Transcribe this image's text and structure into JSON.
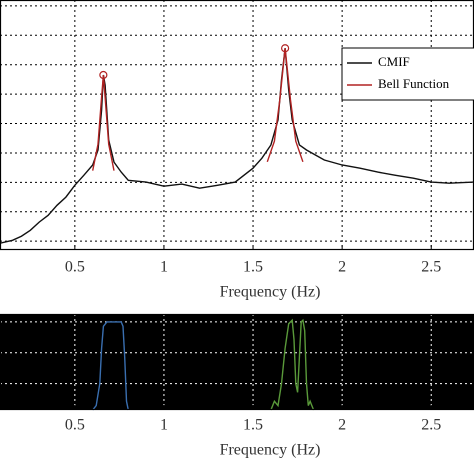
{
  "chart_data": [
    {
      "type": "line",
      "x_label": "Frequency (Hz)",
      "xlim": [
        0.08,
        2.74
      ],
      "xticks": [
        0.5,
        1,
        1.5,
        2,
        2.5
      ],
      "ylim": [
        -0.3,
        8.2
      ],
      "yticks": [
        0,
        1,
        2,
        3,
        4,
        5,
        6,
        7,
        8
      ],
      "grid": true,
      "grid_color": "#000",
      "background": "#fff",
      "legend": "upper right",
      "series": [
        {
          "name": "CMIF",
          "color": "#111",
          "x": [
            0.08,
            0.15,
            0.2,
            0.25,
            0.3,
            0.35,
            0.4,
            0.45,
            0.5,
            0.55,
            0.6,
            0.63,
            0.65,
            0.66,
            0.67,
            0.69,
            0.72,
            0.76,
            0.8,
            0.9,
            1.0,
            1.1,
            1.2,
            1.3,
            1.4,
            1.5,
            1.55,
            1.6,
            1.64,
            1.66,
            1.68,
            1.7,
            1.72,
            1.76,
            1.8,
            1.9,
            2.0,
            2.1,
            2.2,
            2.3,
            2.4,
            2.5,
            2.6,
            2.74
          ],
          "values": [
            -0.07,
            0.03,
            0.17,
            0.37,
            0.65,
            0.88,
            1.22,
            1.5,
            1.9,
            2.24,
            2.59,
            3.1,
            4.46,
            5.65,
            5.31,
            3.44,
            2.69,
            2.35,
            2.07,
            2.01,
            1.87,
            1.94,
            1.8,
            1.9,
            2.01,
            2.48,
            2.82,
            3.27,
            4.12,
            5.48,
            6.56,
            5.14,
            4.12,
            3.27,
            3.1,
            2.76,
            2.59,
            2.48,
            2.35,
            2.24,
            2.14,
            2.01,
            1.97,
            2.01
          ]
        },
        {
          "name": "Bell Function",
          "color": "#b22222",
          "x": [
            0.6,
            0.63,
            0.65,
            0.66,
            0.67,
            0.69,
            0.72,
            null,
            1.58,
            1.62,
            1.65,
            1.68,
            1.71,
            1.74,
            1.78
          ],
          "values": [
            2.4,
            3.3,
            4.9,
            5.65,
            4.9,
            3.3,
            2.4,
            null,
            2.7,
            3.4,
            4.8,
            6.56,
            4.8,
            3.4,
            2.7
          ]
        }
      ],
      "markers": {
        "color": "#b22222",
        "x": [
          0.66,
          1.68
        ],
        "values": [
          5.65,
          6.56
        ]
      }
    },
    {
      "type": "line",
      "x_label": "Frequency (Hz)",
      "xlim": [
        0.08,
        2.74
      ],
      "xticks": [
        0.5,
        1,
        1.5,
        2,
        2.5
      ],
      "ylim": [
        0,
        1.09
      ],
      "yticks": [
        0.3,
        0.65,
        1.0
      ],
      "grid": true,
      "grid_color": "#fff",
      "background": "#000",
      "series": [
        {
          "color": "#3a6fb0",
          "x": [
            0.6,
            0.62,
            0.64,
            0.65,
            0.66,
            0.68,
            0.72,
            0.76,
            0.77,
            0.78,
            0.79,
            0.8
          ],
          "values": [
            0,
            0.05,
            0.3,
            0.7,
            0.95,
            1,
            1,
            1,
            0.95,
            0.6,
            0.1,
            0
          ]
        },
        {
          "color": "#5a9a3a",
          "x": [
            1.6,
            1.62,
            1.64,
            1.66,
            1.68,
            1.7,
            1.72,
            1.73,
            1.74,
            1.75,
            1.76,
            1.77,
            1.78,
            1.79,
            1.8,
            1.81,
            1.82,
            1.84
          ],
          "values": [
            0,
            0.1,
            0.05,
            0.3,
            0.7,
            0.98,
            1.02,
            0.8,
            0.3,
            0.2,
            0.6,
            1.0,
            1.02,
            0.9,
            0.3,
            0.05,
            0.1,
            0
          ]
        }
      ]
    }
  ]
}
